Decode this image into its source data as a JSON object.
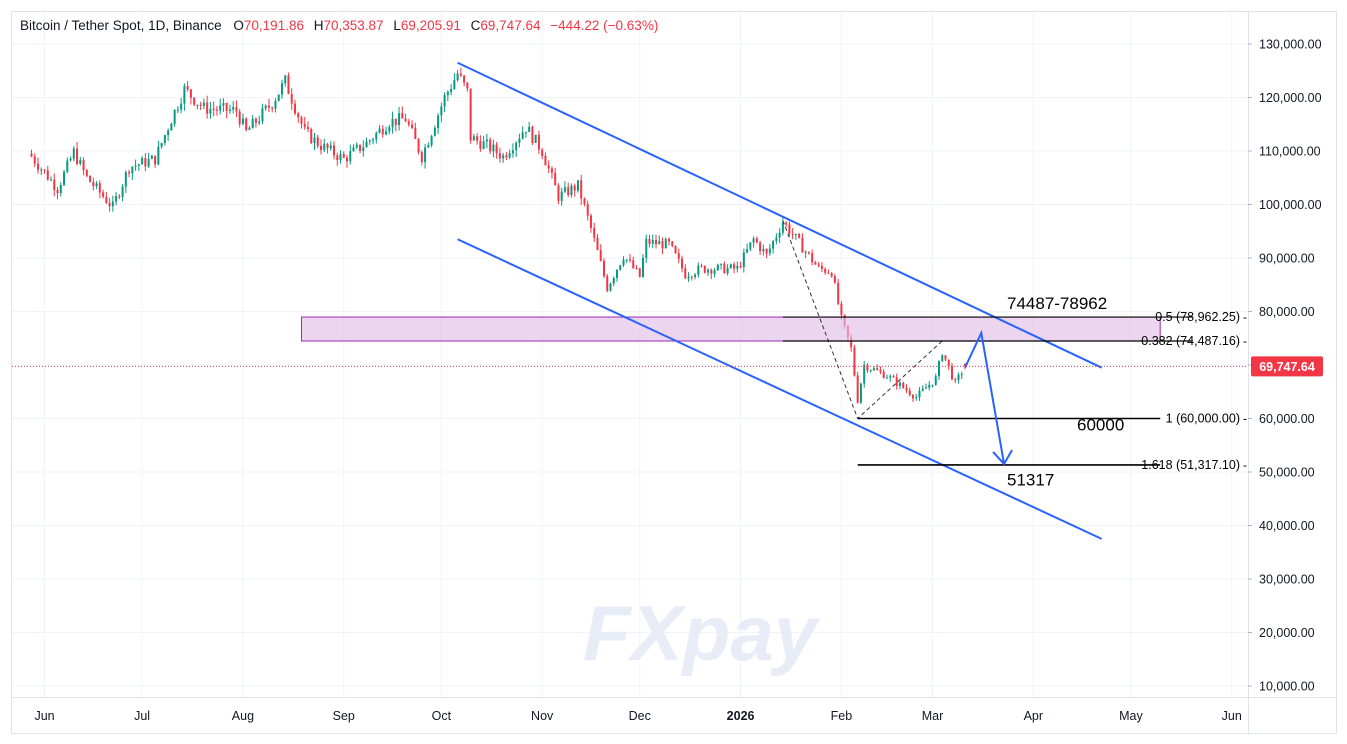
{
  "legend": {
    "symbol": "Bitcoin / Tether Spot, 1D, Binance",
    "open_label": "O",
    "open": "70,191.86",
    "high_label": "H",
    "high": "70,353.87",
    "low_label": "L",
    "low": "69,205.91",
    "close_label": "C",
    "close": "69,747.64",
    "change": "−444.22 (−0.63%)"
  },
  "watermark": "FXpay",
  "colors": {
    "up": "#089981",
    "down": "#f23645",
    "trend": "#2962ff",
    "zone": "#e1bee7",
    "zone_border": "#9c27b0",
    "price_label": "#f23645"
  },
  "chart_data": {
    "type": "candlestick",
    "title": "Bitcoin / Tether Spot, 1D, Binance",
    "ylim": [
      7000,
      135000
    ],
    "y_ticks": [
      "130,000.00",
      "120,000.00",
      "110,000.00",
      "100,000.00",
      "90,000.00",
      "80,000.00",
      "70,000.00",
      "60,000.00",
      "50,000.00",
      "40,000.00",
      "30,000.00",
      "20,000.00",
      "10,000.00"
    ],
    "y_tick_values": [
      130000,
      120000,
      110000,
      100000,
      90000,
      80000,
      70000,
      60000,
      50000,
      40000,
      30000,
      20000,
      10000
    ],
    "x_ticks": [
      "Jun",
      "Jul",
      "Aug",
      "Sep",
      "Oct",
      "Nov",
      "Dec",
      "2026",
      "Feb",
      "Mar",
      "Apr",
      "May",
      "Jun"
    ],
    "x_tick_dates": [
      "2025-06-01",
      "2025-07-01",
      "2025-08-01",
      "2025-09-01",
      "2025-10-01",
      "2025-11-01",
      "2025-12-01",
      "2026-01-01",
      "2026-02-01",
      "2026-03-01",
      "2026-04-01",
      "2026-05-01",
      "2026-06-01"
    ],
    "last_price": 69747.64,
    "last_price_label": "69,747.64",
    "anchors": [
      [
        "2025-05-28",
        109000
      ],
      [
        "2025-06-05",
        103000
      ],
      [
        "2025-06-10",
        109800
      ],
      [
        "2025-06-14",
        105000
      ],
      [
        "2025-06-22",
        99500
      ],
      [
        "2025-06-27",
        107000
      ],
      [
        "2025-07-05",
        108500
      ],
      [
        "2025-07-10",
        116000
      ],
      [
        "2025-07-14",
        121500
      ],
      [
        "2025-07-20",
        118000
      ],
      [
        "2025-07-30",
        117500
      ],
      [
        "2025-08-02",
        113500
      ],
      [
        "2025-08-10",
        119000
      ],
      [
        "2025-08-14",
        123000
      ],
      [
        "2025-08-20",
        113500
      ],
      [
        "2025-08-25",
        111000
      ],
      [
        "2025-09-01",
        108500
      ],
      [
        "2025-09-08",
        111500
      ],
      [
        "2025-09-15",
        115500
      ],
      [
        "2025-09-20",
        116000
      ],
      [
        "2025-09-25",
        109000
      ],
      [
        "2025-10-02",
        120000
      ],
      [
        "2025-10-06",
        124500
      ],
      [
        "2025-10-09",
        121000
      ],
      [
        "2025-10-10",
        112500
      ],
      [
        "2025-10-15",
        111000
      ],
      [
        "2025-10-20",
        109000
      ],
      [
        "2025-10-27",
        114500
      ],
      [
        "2025-11-01",
        110000
      ],
      [
        "2025-11-06",
        101500
      ],
      [
        "2025-11-12",
        103500
      ],
      [
        "2025-11-16",
        95500
      ],
      [
        "2025-11-21",
        84500
      ],
      [
        "2025-11-26",
        90500
      ],
      [
        "2025-12-01",
        86500
      ],
      [
        "2025-12-03",
        93000
      ],
      [
        "2025-12-10",
        92500
      ],
      [
        "2025-12-15",
        87000
      ],
      [
        "2025-12-20",
        88000
      ],
      [
        "2025-12-31",
        88000
      ],
      [
        "2026-01-05",
        93500
      ],
      [
        "2026-01-09",
        90500
      ],
      [
        "2026-01-14",
        96800
      ],
      [
        "2026-01-20",
        92000
      ],
      [
        "2026-01-25",
        88000
      ],
      [
        "2026-01-29",
        87500
      ],
      [
        "2026-02-01",
        78500
      ],
      [
        "2026-02-04",
        73000
      ],
      [
        "2026-02-06",
        63500
      ],
      [
        "2026-02-08",
        70000
      ],
      [
        "2026-02-15",
        68000
      ],
      [
        "2026-02-24",
        64000
      ],
      [
        "2026-03-02",
        67500
      ],
      [
        "2026-03-04",
        72500
      ],
      [
        "2026-03-08",
        66500
      ],
      [
        "2026-03-11",
        69747.64
      ]
    ],
    "fib_levels": [
      {
        "ratio": "0.5",
        "label": "0.5 (78,962.25)",
        "value": 78962.25
      },
      {
        "ratio": "0.382",
        "label": "0.382 (74,487.16)",
        "value": 74487.16
      },
      {
        "ratio": "1",
        "label": "1 (60,000.00)",
        "value": 60000
      },
      {
        "ratio": "1.618",
        "label": "1.618 (51,317.10)",
        "value": 51317.1
      }
    ],
    "zone": {
      "low": 74487,
      "high": 78962,
      "label": "74487-78962",
      "start": "2025-08-19",
      "end": "2026-05-10"
    },
    "channel": {
      "upper": [
        [
          "2025-10-06",
          126500
        ],
        [
          "2026-04-22",
          69500
        ]
      ],
      "lower": [
        [
          "2025-10-06",
          93500
        ],
        [
          "2026-04-22",
          37500
        ]
      ]
    },
    "zigzag": [
      [
        "2026-01-14",
        97000
      ],
      [
        "2026-02-06",
        60000
      ],
      [
        "2026-03-04",
        74500
      ]
    ],
    "forecast": [
      [
        "2026-03-11",
        69500
      ],
      [
        "2026-03-16",
        76000
      ],
      [
        "2026-03-23",
        51500
      ]
    ],
    "annotations": [
      "74487-78962",
      "60000",
      "51317"
    ],
    "grid": true
  }
}
